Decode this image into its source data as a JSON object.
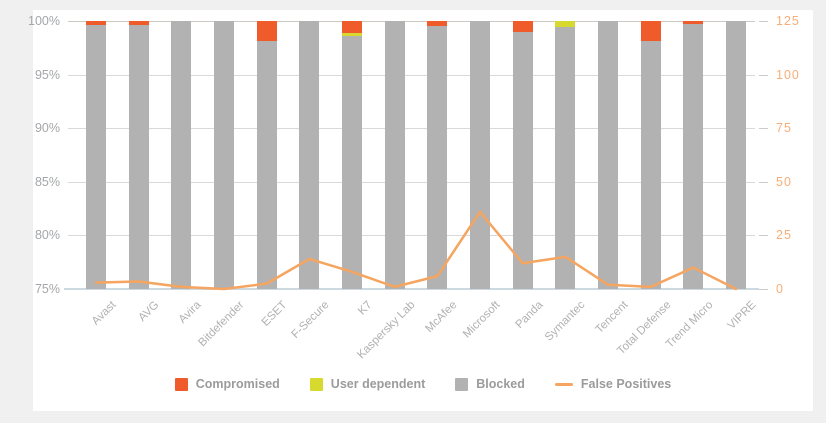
{
  "page": {
    "background": "#f0f0f1",
    "card_background": "#ffffff"
  },
  "chart_data": {
    "type": "bar",
    "subtype": "stacked-column-with-line",
    "title": "",
    "categories": [
      "Avast",
      "AVG",
      "Avira",
      "Bitdefender",
      "ESET",
      "F-Secure",
      "K7",
      "Kaspersky Lab",
      "McAfee",
      "Microsoft",
      "Panda",
      "Symantec",
      "Tencent",
      "Total Defense",
      "Trend Micro",
      "VIPRE"
    ],
    "series": [
      {
        "name": "Compromised",
        "type": "bar",
        "color": "#f05b2b",
        "axis": "left",
        "values": [
          0.4,
          0.4,
          0,
          0,
          1.9,
          0,
          1.1,
          0,
          0.5,
          0,
          1.0,
          0,
          0,
          1.9,
          0.3,
          0
        ]
      },
      {
        "name": "User dependent",
        "type": "bar",
        "color": "#d8d92e",
        "axis": "left",
        "values": [
          0,
          0,
          0,
          0,
          0,
          0,
          0.3,
          0,
          0,
          0,
          0,
          0.6,
          0,
          0,
          0,
          0
        ]
      },
      {
        "name": "Blocked",
        "type": "bar",
        "color": "#b2b2b2",
        "axis": "left",
        "values": [
          99.6,
          99.6,
          100,
          100,
          98.1,
          100,
          98.6,
          100,
          99.5,
          100,
          99.0,
          99.4,
          100,
          98.1,
          99.7,
          100
        ]
      },
      {
        "name": "False Positives",
        "type": "line",
        "color": "#f5a55f",
        "axis": "right",
        "values": [
          3,
          3.5,
          1,
          0,
          2.5,
          14,
          8,
          1,
          6,
          36,
          12,
          15,
          2,
          1,
          10,
          0
        ]
      }
    ],
    "left_axis": {
      "unit": "%",
      "min": 75,
      "max": 100,
      "tick_labels": [
        "100%",
        "95%",
        "90%",
        "85%",
        "80%",
        "75%"
      ],
      "text_color": "#a4a6a9"
    },
    "right_axis": {
      "min": 0,
      "max": 125,
      "tick_labels": [
        "125",
        "100",
        "75",
        "50",
        "25",
        "0"
      ],
      "text_color": "#f7ad77"
    },
    "grid": true,
    "legend_position": "bottom",
    "legend": [
      {
        "label": "Compromised",
        "marker": "square",
        "color": "#f05b2b"
      },
      {
        "label": "User dependent",
        "marker": "square",
        "color": "#d8d92e"
      },
      {
        "label": "Blocked",
        "marker": "square",
        "color": "#b2b2b2"
      },
      {
        "label": "False Positives",
        "marker": "line",
        "color": "#f5a55f"
      }
    ]
  }
}
